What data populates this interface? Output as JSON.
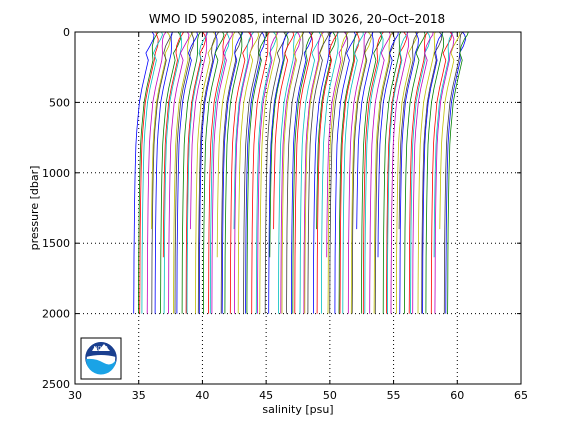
{
  "chart_data": {
    "type": "line",
    "title": "WMO ID 5902085, internal ID 3026, 20–Oct–2018",
    "xlabel": "salinity [psu]",
    "ylabel": "pressure [dbar]",
    "xlim": [
      30,
      65
    ],
    "ylim": [
      0,
      2500
    ],
    "y_reversed": true,
    "grid": "dotted",
    "xticks": [
      30,
      35,
      40,
      45,
      50,
      55,
      60,
      65
    ],
    "yticks": [
      0,
      500,
      1000,
      1500,
      2000,
      2500
    ],
    "x_tick_labels": [
      "30",
      "35",
      "40",
      "45",
      "50",
      "55",
      "60",
      "65"
    ],
    "y_tick_labels": [
      "0",
      "500",
      "1000",
      "1500",
      "2000",
      "2500"
    ],
    "colors": [
      "#0000ff",
      "#008000",
      "#ff0000",
      "#00bfbf",
      "#bf00bf",
      "#bfbf00",
      "#404040"
    ],
    "profile_pressures": [
      0,
      20,
      50,
      100,
      150,
      200,
      300,
      400,
      500,
      600,
      700,
      800,
      1000,
      1200,
      1400,
      1600,
      1800,
      2000
    ],
    "profile_shape_psu": [
      0.25,
      0.25,
      0.2,
      0.05,
      -0.1,
      -0.05,
      -0.3,
      -0.55,
      -0.75,
      -0.85,
      -0.95,
      -1.02,
      -1.08,
      -1.12,
      -1.15,
      -1.17,
      -1.18,
      -1.19
    ],
    "profile_count": 100,
    "profile_offset_first": 35.8,
    "profile_offset_step": 0.25,
    "logo": "noaa-logo"
  }
}
